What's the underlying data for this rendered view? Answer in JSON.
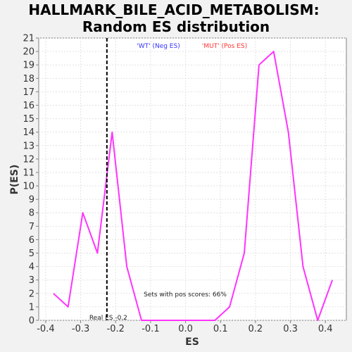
{
  "chart_data": {
    "type": "line",
    "title_line1": "HALLMARK_BILE_ACID_METABOLISM:",
    "title_line2": "Random ES distribution",
    "xlabel": "ES",
    "ylabel": "P(ES)",
    "xlim": [
      -0.42,
      0.46
    ],
    "ylim": [
      0,
      21
    ],
    "x_ticks": [
      "-0.4",
      "-0.3",
      "-0.2",
      "-0.1",
      "0.0",
      "0.1",
      "0.2",
      "0.3",
      "0.4"
    ],
    "y_ticks": [
      "0",
      "1",
      "2",
      "3",
      "4",
      "5",
      "6",
      "7",
      "8",
      "9",
      "10",
      "11",
      "12",
      "13",
      "14",
      "15",
      "16",
      "17",
      "18",
      "19",
      "20",
      "21"
    ],
    "grid": true,
    "series": [
      {
        "color": "#ff33ff",
        "x": [
          -0.378,
          -0.336,
          -0.294,
          -0.252,
          -0.21,
          -0.168,
          -0.126,
          -0.084,
          -0.042,
          0.0,
          0.042,
          0.084,
          0.126,
          0.168,
          0.21,
          0.252,
          0.294,
          0.336,
          0.378,
          0.42
        ],
        "y": [
          2,
          1,
          8,
          5,
          14,
          4,
          0,
          0,
          0,
          0,
          0,
          0,
          1,
          5,
          19,
          20,
          14,
          4,
          0,
          3
        ]
      }
    ],
    "real_es": -0.225,
    "real_es_label": "Real ES -0.2",
    "legend": {
      "wt_label": "'WT' (Neg ES)",
      "wt_color": "#3333ff",
      "mut_label": "'MUT' (Pos ES)",
      "mut_color": "#ff3333"
    },
    "annotation": "Sets with pos scores: 66%"
  }
}
